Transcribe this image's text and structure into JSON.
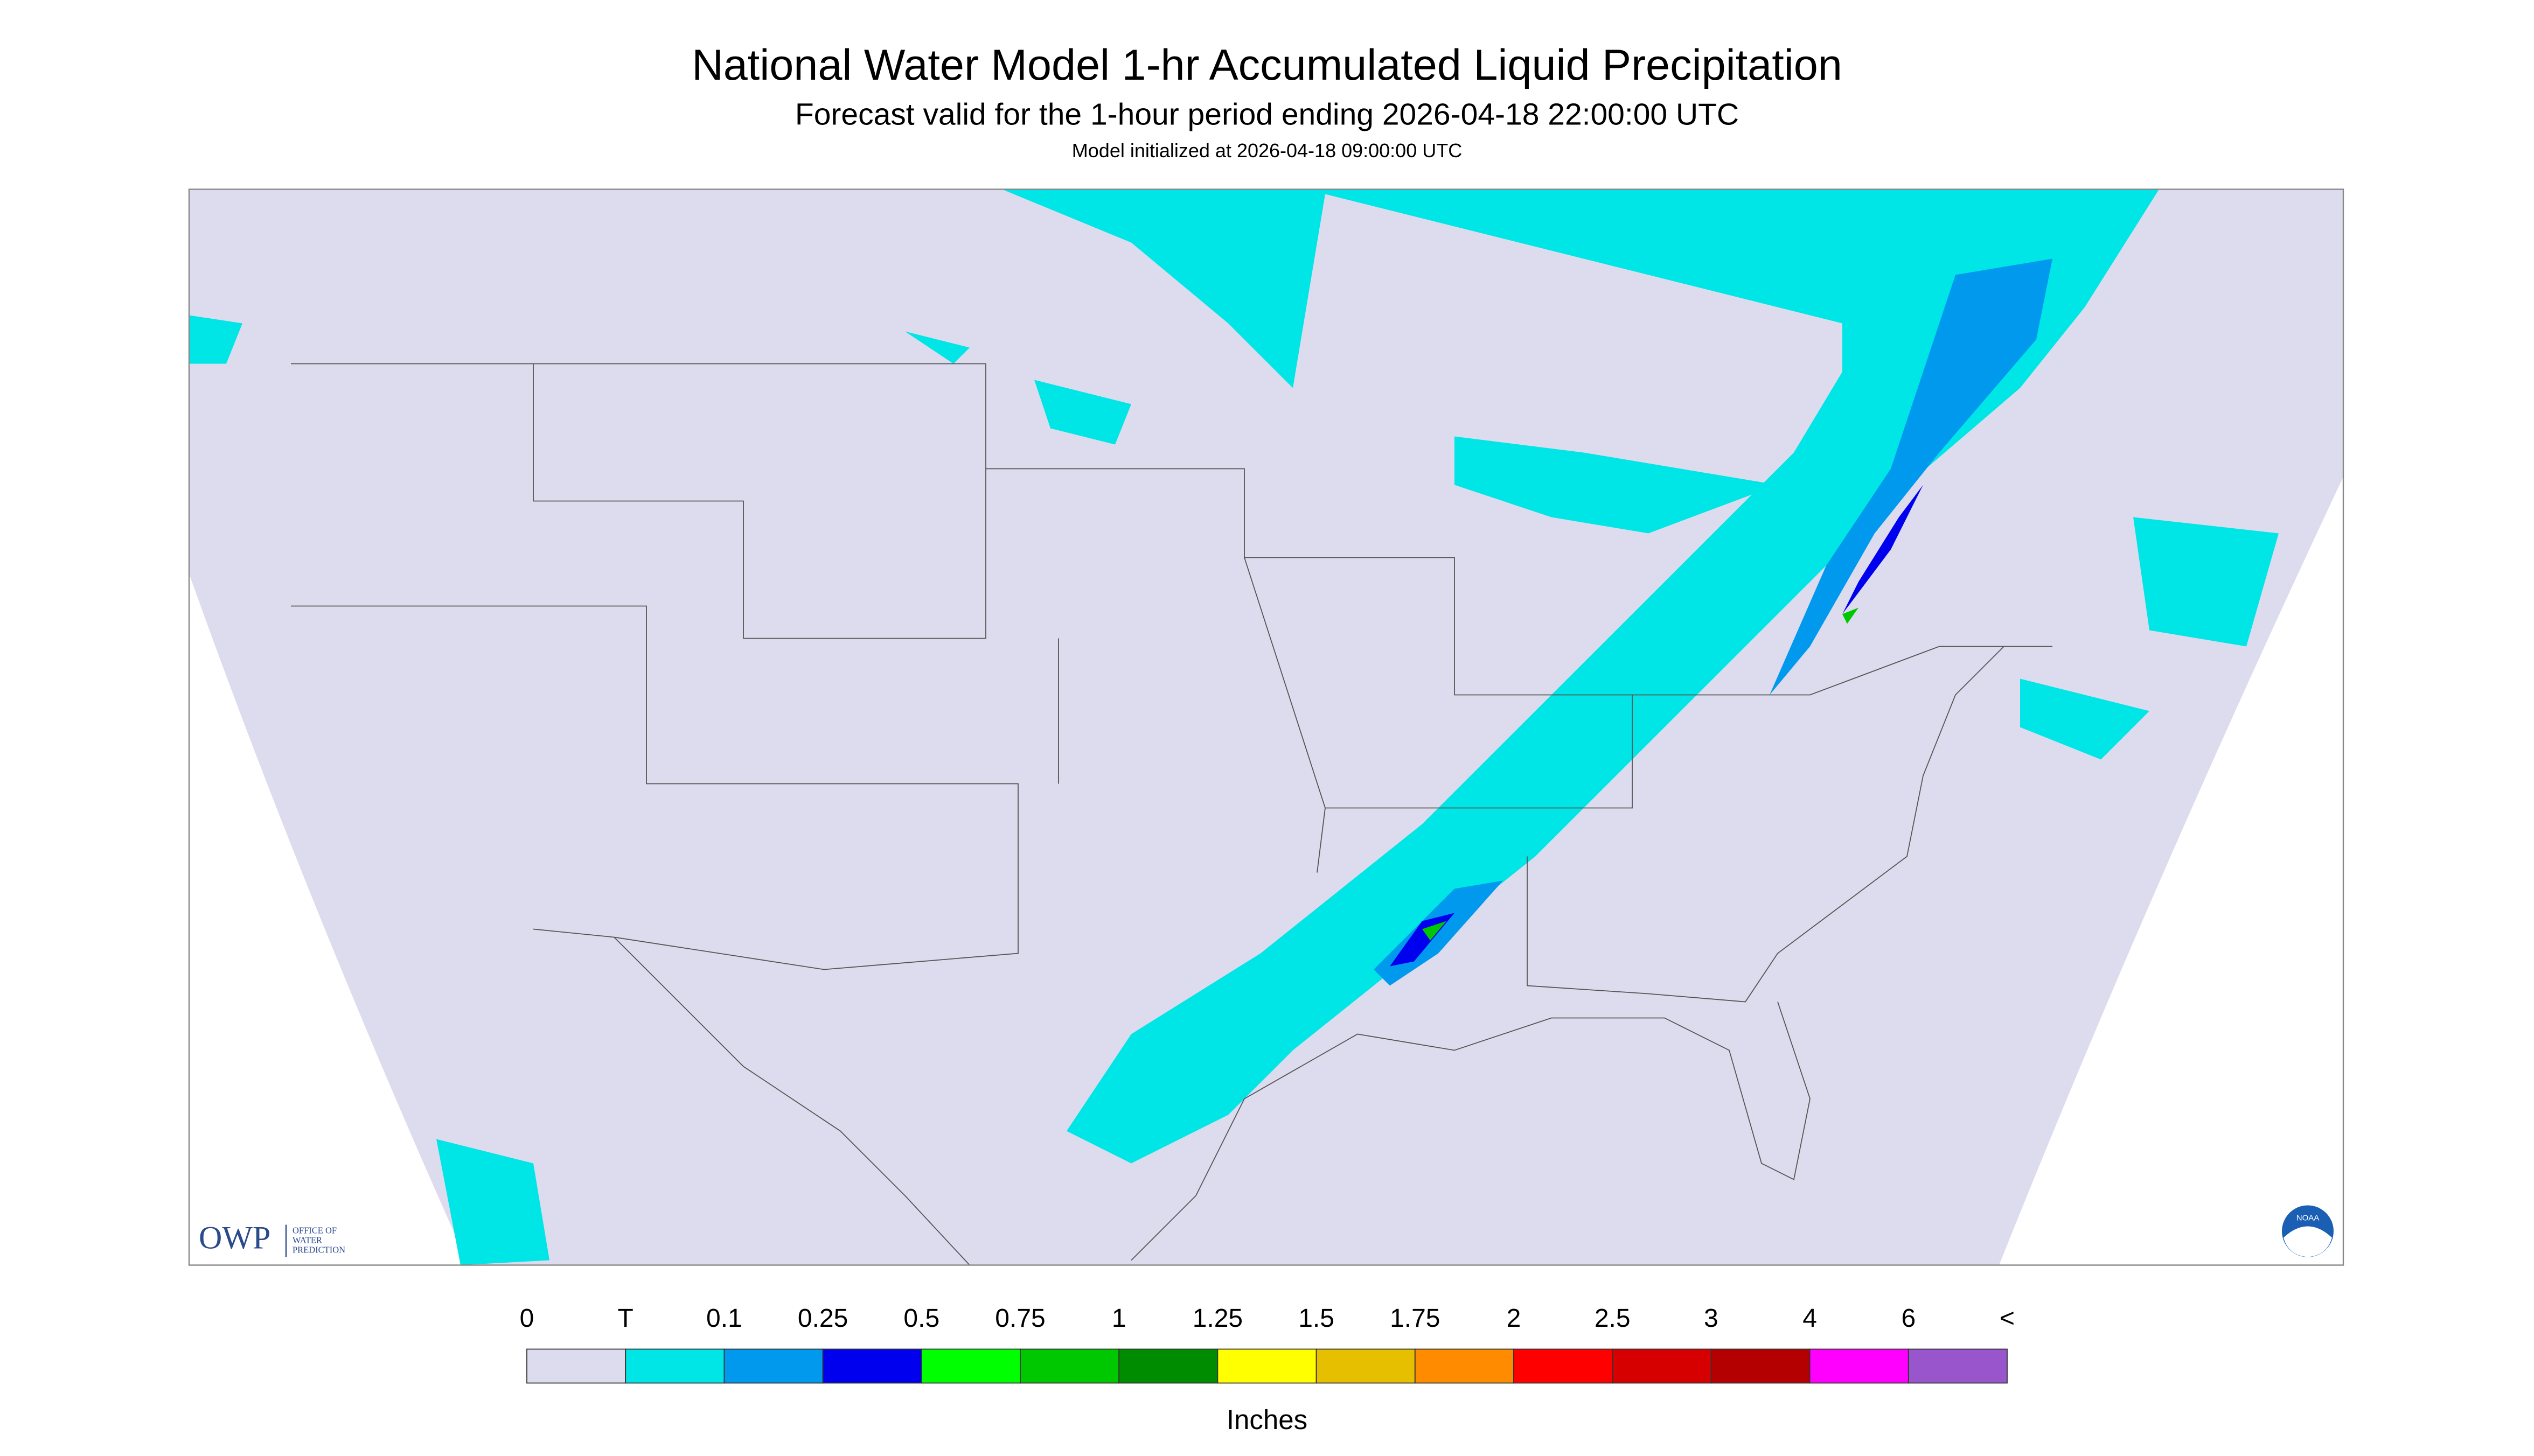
{
  "header": {
    "title": "National Water Model 1-hr Accumulated Liquid Precipitation",
    "subtitle": "Forecast valid for the 1-hour period ending 2026-04-18 22:00:00 UTC",
    "init": "Model initialized at 2026-04-18 09:00:00 UTC"
  },
  "legend": {
    "labels": [
      "0",
      "T",
      "0.1",
      "0.25",
      "0.5",
      "0.75",
      "1",
      "1.25",
      "1.5",
      "1.75",
      "2",
      "2.5",
      "3",
      "4",
      "6",
      "<"
    ],
    "colors": [
      "#dcdcee",
      "#00e5e5",
      "#0099ee",
      "#0000ee",
      "#00ff00",
      "#00c800",
      "#008c00",
      "#ffff00",
      "#e6c000",
      "#ff8c00",
      "#ff0000",
      "#d70000",
      "#b40000",
      "#ff00ff",
      "#9955cc"
    ],
    "unit": "Inches"
  },
  "logos": {
    "owp": "OWP",
    "owp_name": [
      "OFFICE OF",
      "WATER",
      "PREDICTION"
    ],
    "noaa": "NOAA"
  }
}
